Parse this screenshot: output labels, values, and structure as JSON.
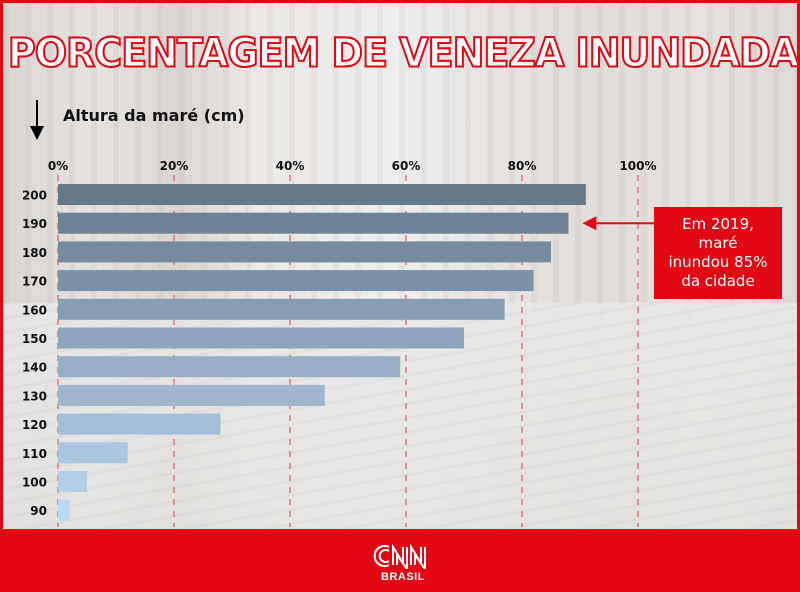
{
  "title": "PORCENTAGEM DE VENEZA INUNDADA",
  "annotation": {
    "lines": [
      "Em 2019,",
      "maré",
      "inundou 85%",
      "da cidade"
    ],
    "points_to_category": "190",
    "color": "#e30613"
  },
  "footer": {
    "brand": "CNN",
    "brand_sub": "BRASIL",
    "color": "#e30613"
  },
  "chart_data": {
    "type": "bar",
    "orientation": "horizontal",
    "title": "PORCENTAGEM DE VENEZA INUNDADA",
    "ylabel": "Altura da maré (cm)",
    "xlabel": "",
    "categories": [
      "200",
      "190",
      "180",
      "170",
      "160",
      "150",
      "140",
      "130",
      "120",
      "110",
      "100",
      "90"
    ],
    "values": [
      91,
      88,
      85,
      82,
      77,
      70,
      59,
      46,
      28,
      12,
      5,
      2
    ],
    "value_unit": "%",
    "xlim": [
      0,
      100
    ],
    "xticks": [
      0,
      20,
      40,
      60,
      80,
      100
    ],
    "xtick_labels": [
      "0%",
      "20%",
      "40%",
      "60%",
      "80%",
      "100%"
    ],
    "grid": "vertical dashed red",
    "bar_colors": [
      "#667988",
      "#6e8295",
      "#778b9f",
      "#7c91a6",
      "#879db1",
      "#8ea6bb",
      "#97aec4",
      "#9fb6cc",
      "#a4bed6",
      "#abc6e0",
      "#b3cfe8",
      "#b9d8f4"
    ],
    "grid_color": "#e8555d"
  }
}
